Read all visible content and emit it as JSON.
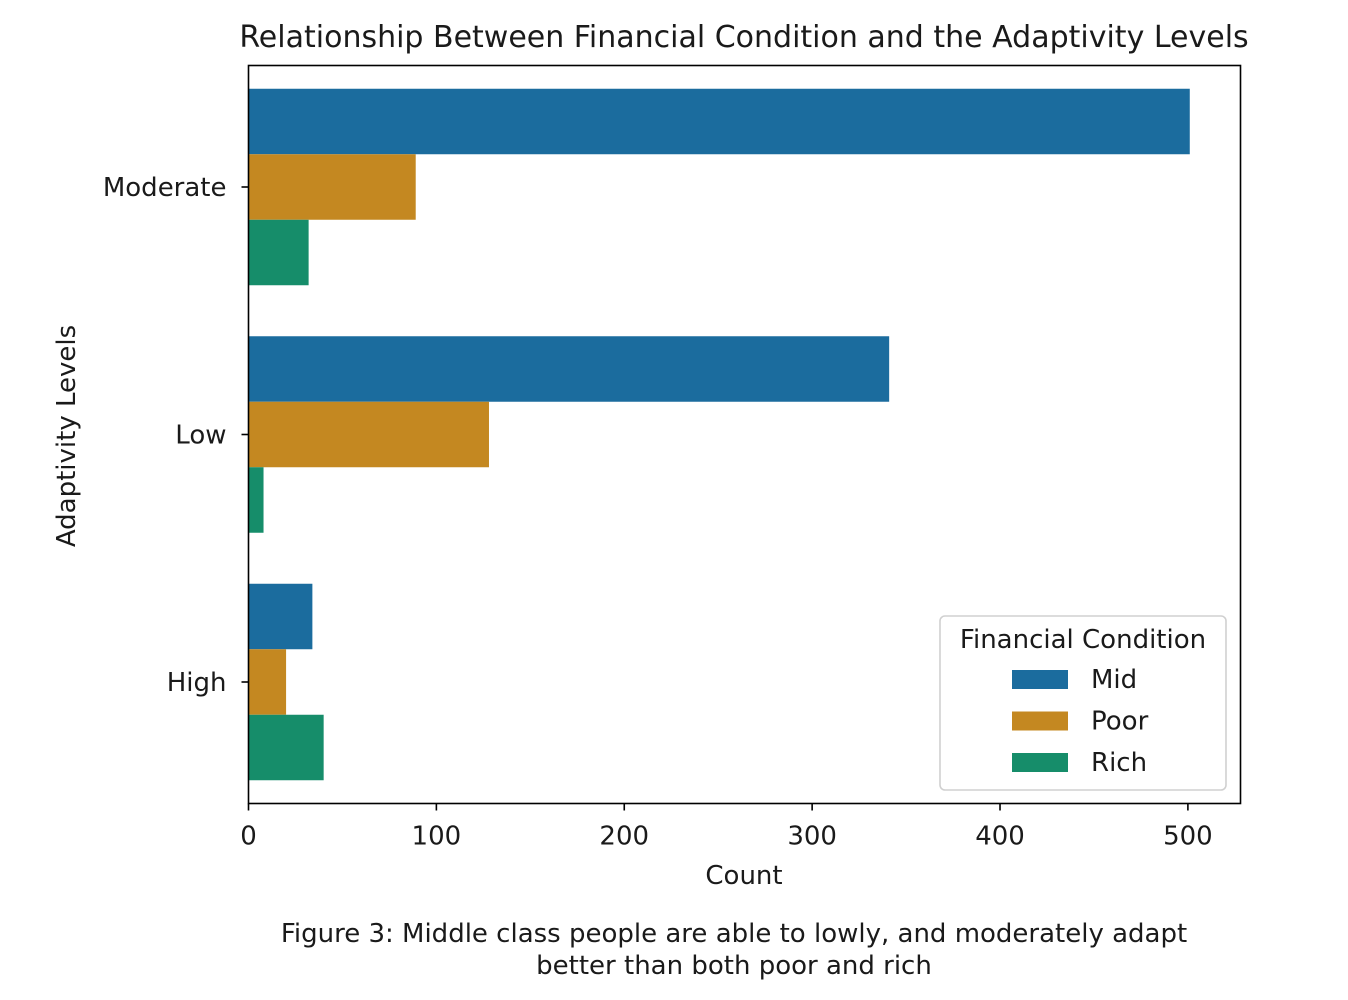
{
  "chart_data": {
    "type": "bar",
    "orientation": "horizontal",
    "title": "Relationship Between Financial Condition and the Adaptivity Levels",
    "xlabel": "Count",
    "ylabel": "Adaptivity Levels",
    "categories": [
      "Moderate",
      "Low",
      "High"
    ],
    "series": [
      {
        "name": "Mid",
        "color": "#1b6c9e",
        "values": [
          501,
          341,
          34
        ]
      },
      {
        "name": "Poor",
        "color": "#c48821",
        "values": [
          89,
          128,
          20
        ]
      },
      {
        "name": "Rich",
        "color": "#168d6a",
        "values": [
          32,
          8,
          40
        ]
      }
    ],
    "xlim": [
      0,
      528
    ],
    "xticks": [
      0,
      100,
      200,
      300,
      400,
      500
    ],
    "legend": {
      "title": "Financial Condition",
      "placement": "lower-right"
    },
    "grid": false
  },
  "caption": {
    "line1": "Figure 3: Middle class people are able to lowly, and moderately adapt",
    "line2": "better than both poor and rich"
  }
}
